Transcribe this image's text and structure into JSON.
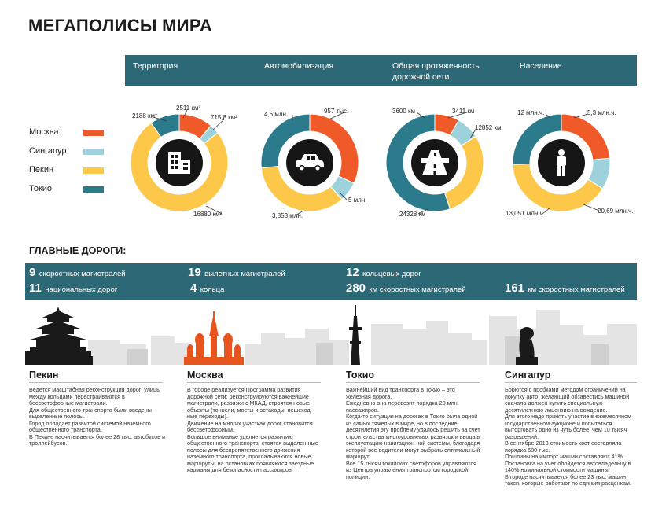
{
  "title": "МЕГАПОЛИСЫ МИРА",
  "categories": [
    {
      "label": "Территория"
    },
    {
      "label": "Автомобилизация"
    },
    {
      "label": "Общая протяженность дорожной сети"
    },
    {
      "label": "Население"
    }
  ],
  "legend": [
    {
      "label": "Москва",
      "color": "#f05a28"
    },
    {
      "label": "Сингапур",
      "color": "#9dd1dc"
    },
    {
      "label": "Пекин",
      "color": "#fdc84a"
    },
    {
      "label": "Токио",
      "color": "#2c7b8c"
    }
  ],
  "chart_data": [
    {
      "type": "pie",
      "title": "Территория",
      "icon": "building-icon",
      "series": [
        "Москва",
        "Сингапур",
        "Пекин",
        "Токио"
      ],
      "values": [
        2511,
        715.8,
        16880,
        2188
      ],
      "labels": [
        "2511 км²",
        "715,8 км²",
        "16880 км²",
        "2188 км²"
      ]
    },
    {
      "type": "pie",
      "title": "Автомобилизация",
      "icon": "car-icon",
      "series": [
        "Москва",
        "Сингапур",
        "Пекин",
        "Токио"
      ],
      "values": [
        4.6,
        0.957,
        5,
        3.853
      ],
      "labels": [
        "4,6 млн.",
        "957 тыс.",
        "5 млн.",
        "3,853 млн."
      ]
    },
    {
      "type": "pie",
      "title": "Общая протяженность дорожной сети",
      "icon": "road-icon",
      "series": [
        "Москва",
        "Сингапур",
        "Пекин",
        "Токио"
      ],
      "values": [
        3600,
        3411,
        12852,
        24328
      ],
      "labels": [
        "3600 км",
        "3411 км",
        "12852 км",
        "24328 км"
      ]
    },
    {
      "type": "pie",
      "title": "Население",
      "icon": "person-icon",
      "series": [
        "Москва",
        "Сингапур",
        "Пекин",
        "Токио"
      ],
      "values": [
        12,
        5.3,
        20.69,
        13.051
      ],
      "labels": [
        "12 млн.ч.",
        "5,3 млн.ч.",
        "20,69 млн.ч.",
        "13,051 млн.ч."
      ]
    }
  ],
  "roads": {
    "title": "ГЛАВНЫЕ ДОРОГИ:",
    "stats": [
      {
        "num": "9",
        "text": "скоростных магистралей"
      },
      {
        "num": "11",
        "text": "национальных дорог"
      },
      {
        "num": "19",
        "text": "вылетных магистралей"
      },
      {
        "num": "4",
        "text": "кольца"
      },
      {
        "num": "12",
        "text": "кольцевых дорог"
      },
      {
        "num": "280",
        "text": "км скоростных магистралей"
      },
      {
        "num": "161",
        "text": "км скоростных магистралей"
      }
    ]
  },
  "cities": [
    {
      "name": "Пекин",
      "paragraphs": [
        "Ведется масштабная реконструкция дорог: улицы между кольцами перестраиваются в бессветофорные магистрали.",
        "Для общественного транспорта были введены выделенные полосы.",
        "Город обладает развитой системой наземного общественного транспорта.",
        "В Пекине насчитывается более 28 тыс. автобусов и троллейбусов."
      ]
    },
    {
      "name": "Москва",
      "paragraphs": [
        "В городе реализуется Программа развития дорожной сети: реконструируются важнейшие магистрали, развязки с МКАД, строятся новые объекты (тоннели, мосты и эстакады, пешеход-ные переходы).",
        "Движение на многих участках дорог становится бессветофорным.",
        "Большое внимание уделяется развитию общественного транспорта: стоятся выделен-ные полосы для беспрепятственного движения наземного транспорта, прокладываются новые маршруты, на остановках появляются заездные карманы для безопасности пассажиров."
      ]
    },
    {
      "name": "Токио",
      "paragraphs": [
        "Важнейший вид транспорта в Токио – это железная дорога.",
        "Ежедневно она перевозит порядка 20 млн. пассажиров.",
        "Когда-то ситуация на дорогах в Токио была одной из самых тяжелых в мире, но в последние десятилетия эту проблему удалось решить за счет строительства многоуровневых развязок и ввода в эксплуатацию навигацион-ной системы, благодаря которой все водители могут выбрать оптимальный маршрут.",
        "Все 15 тысяч токийских светофоров управляются из Центра управления транспортом городской полиции."
      ]
    },
    {
      "name": "Сингапур",
      "paragraphs": [
        "Борются с пробками методом ограничений на покупку авто: желающий обзавестись машиной сначала должен купить специальную десятилетнюю лицензию на вождение.",
        "Для этого надо принять участие в ежемесячном государственном аукционе и попытаться выторговать одно из чуть более, чем 10 тысяч разрешений.",
        "В сентябре 2013 стоимость квот составляла порядка 580 тыс.",
        "Пошлины на импорт машин составляют 41%.",
        "Постановка на учет обойдется автовладельцу в 140% номинальной стоимости машины.",
        "В городе насчитывается более 23 тыс. машин такси, которые работают по единым расценкам."
      ]
    }
  ]
}
